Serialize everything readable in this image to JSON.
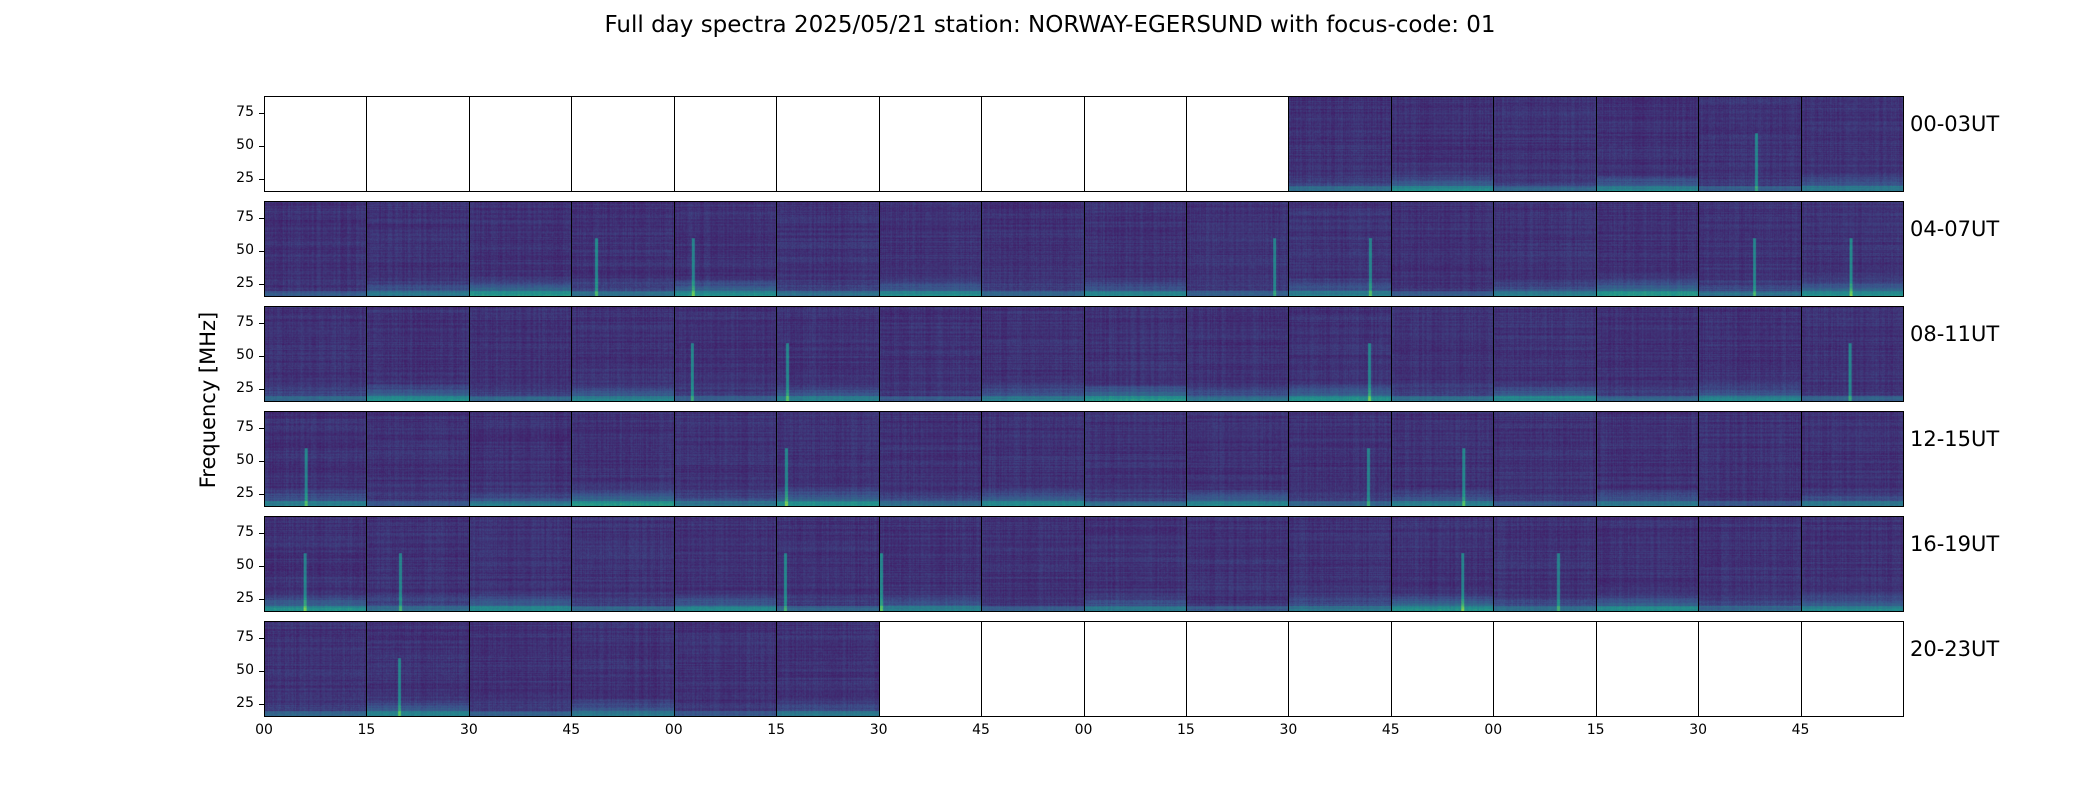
{
  "chart_data": {
    "type": "heatmap",
    "title": "Full day spectra 2025/05/21 station: NORWAY-EGERSUND with focus-code: 01",
    "ylabel": "Frequency [MHz]",
    "ylim": [
      15,
      88
    ],
    "y_ticks": [
      "25",
      "50",
      "75"
    ],
    "x_ticks": [
      "00",
      "15",
      "30",
      "45",
      "00",
      "15",
      "30",
      "45",
      "00",
      "15",
      "30",
      "45",
      "00",
      "15",
      "30",
      "45"
    ],
    "colormap": "viridis",
    "colors": {
      "low": "#440154",
      "mid": "#21918c",
      "high": "#fde725"
    },
    "rows": [
      {
        "label": "00-03UT",
        "panels_with_data": [
          false,
          false,
          false,
          false,
          false,
          false,
          false,
          false,
          false,
          false,
          true,
          true,
          true,
          true,
          true,
          true
        ]
      },
      {
        "label": "04-07UT",
        "panels_with_data": [
          true,
          true,
          true,
          true,
          true,
          true,
          true,
          true,
          true,
          true,
          true,
          true,
          true,
          true,
          true,
          true
        ]
      },
      {
        "label": "08-11UT",
        "panels_with_data": [
          true,
          true,
          true,
          true,
          true,
          true,
          true,
          true,
          true,
          true,
          true,
          true,
          true,
          true,
          true,
          true
        ]
      },
      {
        "label": "12-15UT",
        "panels_with_data": [
          true,
          true,
          true,
          true,
          true,
          true,
          true,
          true,
          true,
          true,
          true,
          true,
          true,
          true,
          true,
          true
        ]
      },
      {
        "label": "16-19UT",
        "panels_with_data": [
          true,
          true,
          true,
          true,
          true,
          true,
          true,
          true,
          true,
          true,
          true,
          true,
          true,
          true,
          true,
          true
        ]
      },
      {
        "label": "20-23UT",
        "panels_with_data": [
          true,
          true,
          true,
          true,
          true,
          true,
          false,
          false,
          false,
          false,
          false,
          false,
          false,
          false,
          false,
          false
        ]
      }
    ]
  }
}
